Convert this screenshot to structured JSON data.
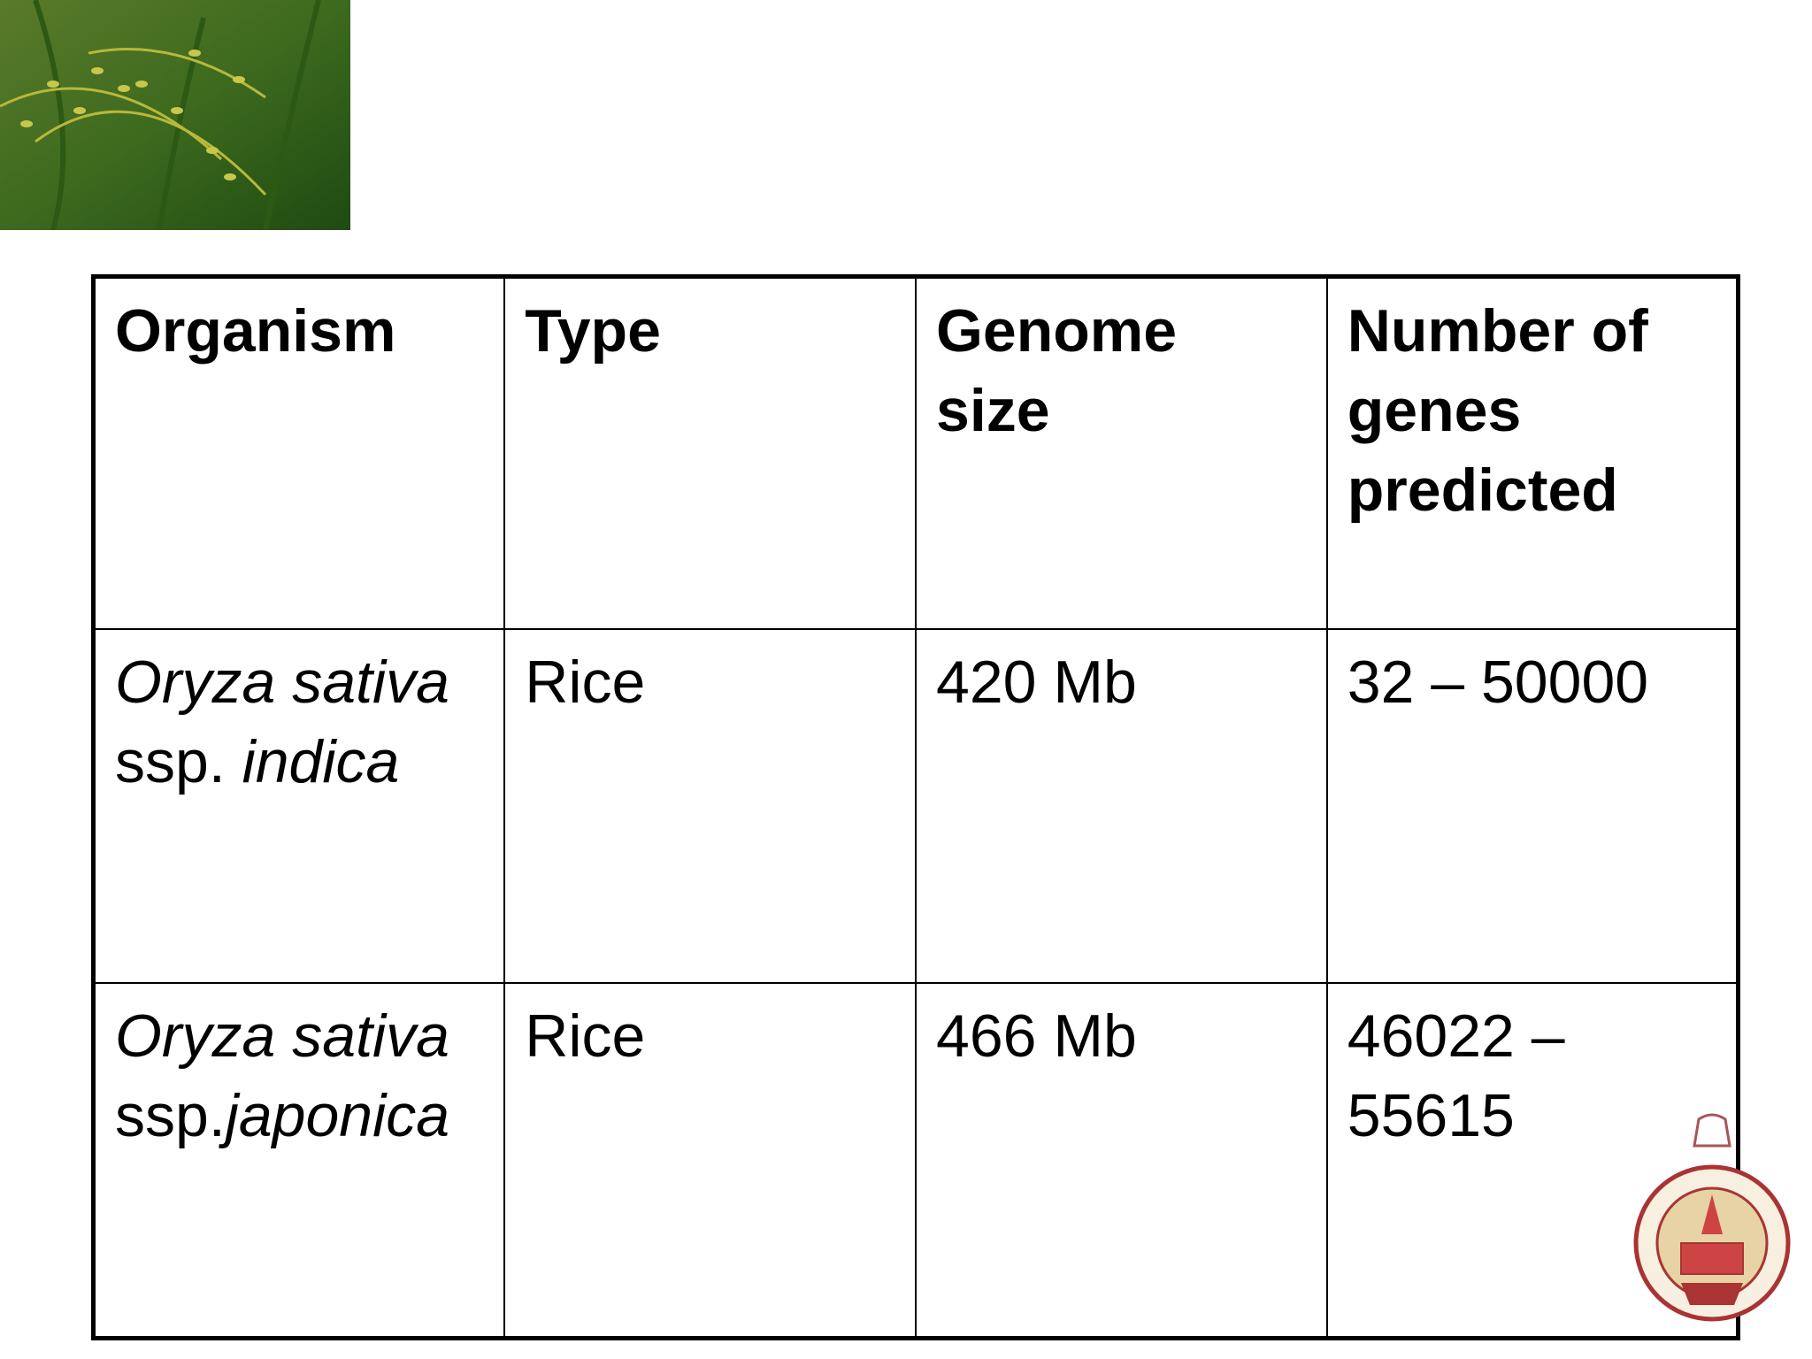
{
  "table": {
    "header": [
      [
        "Organism"
      ],
      [
        "Type"
      ],
      [
        "Genome",
        "size"
      ],
      [
        "Number of",
        "genes",
        "predicted"
      ]
    ],
    "rows": [
      [
        {
          "species": "Oryza sativa",
          "prefix": "ssp. ",
          "subspecies": "indica"
        },
        "Rice",
        "420 Mb",
        [
          "32 – 50000"
        ]
      ],
      [
        {
          "species": "Oryza sativa",
          "prefix": "ssp.",
          "subspecies": "japonica"
        },
        "Rice",
        "466 Mb",
        [
          "46022 –",
          "55615"
        ]
      ]
    ]
  }
}
